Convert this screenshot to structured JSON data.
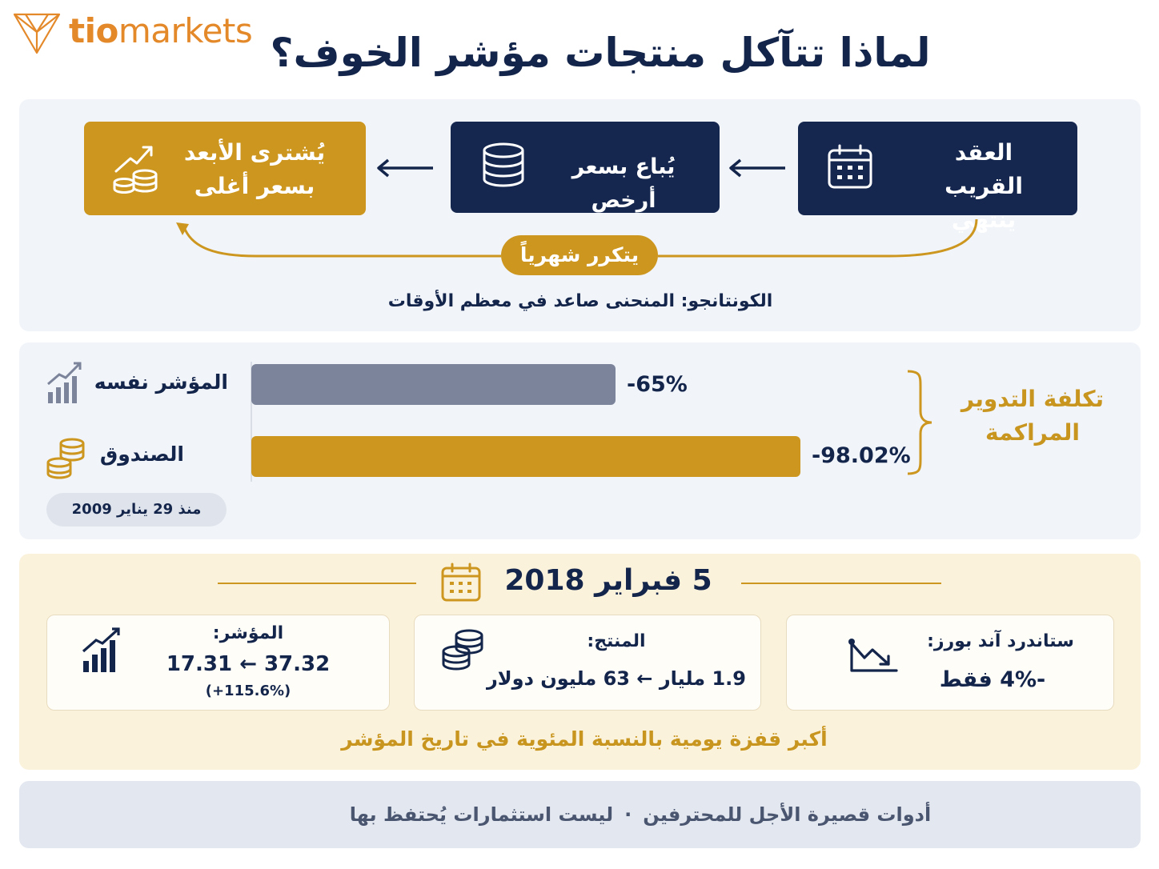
{
  "brand": {
    "logo_part1": "tio",
    "logo_part2": "markets",
    "logo_color": "#e4892a"
  },
  "title": "لماذا تتآكل منتجات مؤشر الخوف؟",
  "cycle": {
    "steps": [
      {
        "label_line1": "العقد القريب",
        "label_line2": "ينتهي",
        "icon": "calendar-icon"
      },
      {
        "label": "يُباع بسعر أرخص",
        "icon": "coins-stack-icon"
      },
      {
        "label_line1": "يُشترى الأبعد",
        "label_line2": "بسعر أغلى",
        "icon": "coins-growth-icon"
      }
    ],
    "repeat_label": "يتكرر شهرياً",
    "contango_note": "الكونتانجو: المنحنى صاعد في معظم الأوقات"
  },
  "rolling_cost": {
    "title_line1": "تكلفة التدوير",
    "title_line2": "المراكمة",
    "rows": [
      {
        "label": "المؤشر نفسه",
        "value_text": "-65%",
        "value": -65,
        "color": "#7b849a",
        "icon": "bar-chart-icon"
      },
      {
        "label": "الصندوق",
        "value_text": "-98.02%",
        "value": -98.02,
        "color": "#cc961f",
        "icon": "coins-stack-icon"
      }
    ],
    "since_label": "منذ 29 يناير 2009"
  },
  "event": {
    "date": "5 فبراير 2018",
    "cards": [
      {
        "label": "ستاندرد آند بورز:",
        "value": "-4% فقط",
        "icon": "trend-down-icon"
      },
      {
        "label": "المنتج:",
        "value": "1.9 مليار ← 63 مليون دولار",
        "icon": "coins-stack-icon"
      },
      {
        "label": "المؤشر:",
        "value": "17.31 ← 37.32",
        "pct": "(+115.6%)",
        "icon": "bar-chart-icon"
      }
    ],
    "note": "أكبر قفزة يومية بالنسبة المئوية في تاريخ المؤشر"
  },
  "footer": {
    "part1": "أدوات قصيرة الأجل للمحترفين",
    "separator": "·",
    "part2": "ليست استثمارات يُحتفظ بها"
  },
  "colors": {
    "navy": "#15274f",
    "gold": "#cc961f",
    "gray": "#7b849a"
  }
}
